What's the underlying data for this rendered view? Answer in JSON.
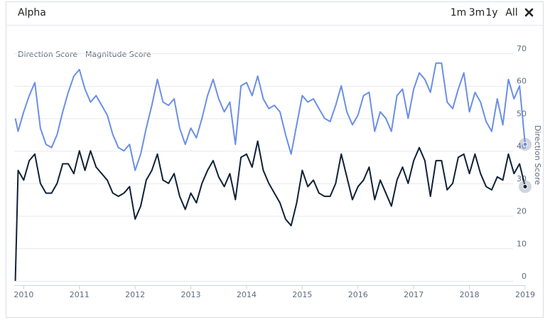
{
  "header": {
    "title": "Alpha",
    "buttons": [
      "1m",
      "3m",
      "1y",
      "All"
    ]
  },
  "chart_data": {
    "type": "line",
    "y_label": "Direction Score",
    "x": [
      2009.85,
      2009.9,
      2010.0,
      2010.1,
      2010.2,
      2010.3,
      2010.4,
      2010.5,
      2010.6,
      2010.7,
      2010.8,
      2010.9,
      2011.0,
      2011.1,
      2011.2,
      2011.3,
      2011.4,
      2011.5,
      2011.6,
      2011.7,
      2011.8,
      2011.9,
      2012.0,
      2012.1,
      2012.2,
      2012.3,
      2012.4,
      2012.5,
      2012.6,
      2012.7,
      2012.8,
      2012.9,
      2013.0,
      2013.1,
      2013.2,
      2013.3,
      2013.4,
      2013.5,
      2013.6,
      2013.7,
      2013.8,
      2013.9,
      2014.0,
      2014.1,
      2014.2,
      2014.3,
      2014.4,
      2014.5,
      2014.6,
      2014.7,
      2014.8,
      2014.9,
      2015.0,
      2015.1,
      2015.2,
      2015.3,
      2015.4,
      2015.5,
      2015.6,
      2015.7,
      2015.8,
      2015.9,
      2016.0,
      2016.1,
      2016.2,
      2016.3,
      2016.4,
      2016.5,
      2016.6,
      2016.7,
      2016.8,
      2016.9,
      2017.0,
      2017.1,
      2017.2,
      2017.3,
      2017.4,
      2017.5,
      2017.6,
      2017.7,
      2017.8,
      2017.9,
      2018.0,
      2018.1,
      2018.2,
      2018.3,
      2018.4,
      2018.5,
      2018.6,
      2018.7,
      2018.8,
      2018.9,
      2019.0
    ],
    "series": [
      {
        "name": "Direction Score",
        "color": "#0f2137",
        "values": [
          0,
          34,
          31,
          37,
          39,
          30,
          27,
          27,
          30,
          36,
          36,
          33,
          40,
          34,
          40,
          35,
          33,
          31,
          27,
          26,
          27,
          29,
          19,
          23,
          31,
          34,
          39,
          31,
          30,
          33,
          26,
          22,
          27,
          24,
          30,
          34,
          37,
          32,
          29,
          33,
          25,
          38,
          39,
          35,
          43,
          34,
          30,
          27,
          24,
          19,
          17,
          24,
          34,
          29,
          31,
          27,
          26,
          26,
          30,
          39,
          32,
          25,
          29,
          31,
          35,
          25,
          31,
          27,
          23,
          31,
          35,
          30,
          37,
          41,
          37,
          26,
          37,
          37,
          28,
          30,
          38,
          39,
          33,
          39,
          33,
          29,
          28,
          32,
          31,
          39,
          33,
          36,
          29
        ]
      },
      {
        "name": "Magnitude Score",
        "color": "#6b8fe6",
        "values": [
          50,
          46,
          52,
          57,
          61,
          47,
          42,
          41,
          45,
          52,
          58,
          63,
          65,
          59,
          55,
          57,
          54,
          51,
          45,
          41,
          40,
          42,
          34,
          39,
          47,
          54,
          62,
          55,
          54,
          56,
          47,
          42,
          47,
          44,
          50,
          57,
          62,
          56,
          52,
          55,
          42,
          60,
          61,
          57,
          63,
          56,
          53,
          54,
          52,
          45,
          39,
          48,
          57,
          55,
          56,
          53,
          50,
          49,
          54,
          60,
          52,
          48,
          51,
          57,
          58,
          46,
          52,
          50,
          46,
          57,
          59,
          50,
          59,
          64,
          62,
          58,
          67,
          67,
          55,
          53,
          59,
          64,
          52,
          58,
          55,
          49,
          46,
          56,
          48,
          62,
          56,
          60,
          42
        ]
      }
    ],
    "xlim": [
      2009.83,
      2019.0
    ],
    "xticks": [
      2010,
      2011,
      2012,
      2013,
      2014,
      2015,
      2016,
      2017,
      2018,
      2019
    ],
    "ylim": [
      0,
      70
    ],
    "yticks": [
      0,
      10,
      20,
      30,
      40,
      50,
      60,
      70
    ],
    "grid": true
  }
}
